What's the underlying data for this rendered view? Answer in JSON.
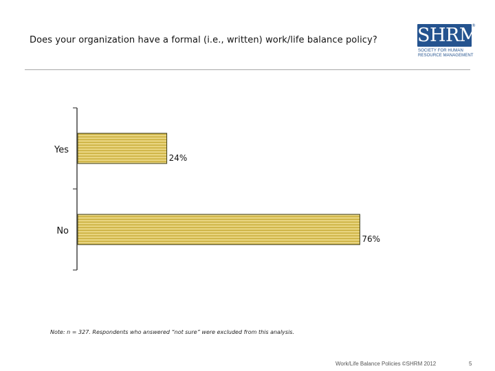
{
  "title": "Does your organization have a formal (i.e., written) work/life balance policy?",
  "logo": {
    "name": "SHRM",
    "registered": "®",
    "line1": "SOCIETY FOR HUMAN",
    "line2": "RESOURCE MANAGEMENT"
  },
  "note": "Note: n = 327. Respondents who answered “not sure” were excluded from this analysis.",
  "footer": "Work/Life Balance Policies ©SHRM 2012",
  "page_number": "5",
  "colors": {
    "bar_fill": "#e8d47f",
    "bar_stripe": "#c8ac38",
    "bar_border": "#3a3a1a",
    "axis": "#444444",
    "brand": "#24538f"
  },
  "chart_data": {
    "type": "bar",
    "orientation": "horizontal",
    "categories": [
      "Yes",
      "No"
    ],
    "values": [
      24,
      76
    ],
    "value_labels": [
      "24%",
      "76%"
    ],
    "xlim": [
      0,
      100
    ],
    "grid": false,
    "legend": "none"
  }
}
